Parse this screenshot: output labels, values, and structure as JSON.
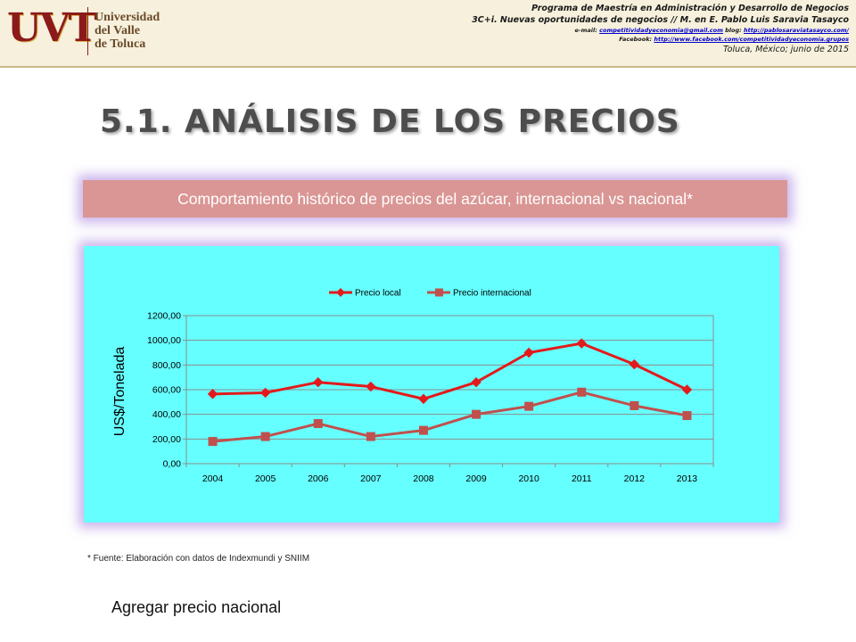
{
  "header": {
    "logo_abbr": "UVT",
    "logo_lines": [
      "Universidad",
      "del Valle",
      "de Toluca"
    ],
    "line1": "Programa de Maestría en Administración y Desarrollo de Negocios",
    "line2": "3C+i. Nuevas oportunidades de negocios // M. en E. Pablo Luis Saravia Tasayco",
    "email_label": "e-mail:",
    "email": "competitividadyeconomia@gmail.com",
    "blog_label": "blog:",
    "blog": "http://pablosaraviatasayco.com/",
    "facebook_label": "Facebook:",
    "facebook": "http://www.facebook.com/competitividadyeconomia.grupos",
    "place_date": "Toluca, México; junio de 2015"
  },
  "slide": {
    "title": "5.1. ANÁLISIS DE LOS PRECIOS",
    "subtitle": "Comportamiento histórico de precios del azúcar, internacional vs nacional*",
    "source": "* Fuente: Elaboración con datos de Indexmundi y SNIIM",
    "note": "Agregar precio nacional"
  },
  "colors": {
    "local": "#e31a1c",
    "international": "#c0504d",
    "chart_bg": "#66ffff",
    "subtitle_bg": "#da9694"
  },
  "chart_data": {
    "type": "line",
    "ylabel": "US$/Tonelada",
    "xlabel": "",
    "ylim": [
      0,
      1200
    ],
    "ytick_labels": [
      "0,00",
      "200,00",
      "400,00",
      "600,00",
      "800,00",
      "1000,00",
      "1200,00"
    ],
    "ytick_values": [
      0,
      200,
      400,
      600,
      800,
      1000,
      1200
    ],
    "grid": true,
    "legend_position": "top",
    "categories": [
      "2004",
      "2005",
      "2006",
      "2007",
      "2008",
      "2009",
      "2010",
      "2011",
      "2012",
      "2013"
    ],
    "series": [
      {
        "name": "Precio local",
        "marker": "diamond",
        "values": [
          565,
          575,
          660,
          625,
          525,
          660,
          900,
          975,
          805,
          600
        ]
      },
      {
        "name": "Precio internacional",
        "marker": "square",
        "values": [
          180,
          220,
          325,
          220,
          270,
          400,
          465,
          580,
          470,
          390
        ]
      }
    ]
  }
}
